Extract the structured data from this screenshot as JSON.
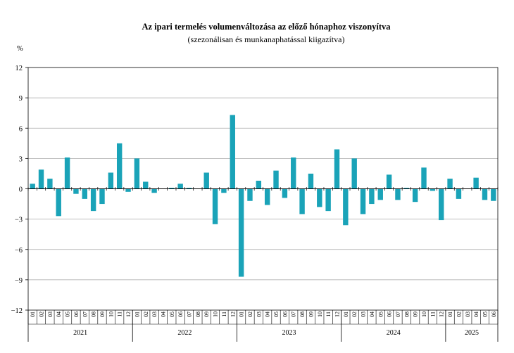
{
  "chart_data": {
    "type": "bar",
    "title": "Az ipari  termelés volumenváltozása az előző hónaphoz viszonyítva",
    "subtitle": "(szezonálisan és munkanaphatással kiigazítva)",
    "ylabel": "%",
    "ylim": [
      -12,
      12
    ],
    "yticks": [
      12,
      9,
      6,
      3,
      0,
      -3,
      -6,
      -9,
      -12
    ],
    "grid": true,
    "bar_color": "#1aa3b8",
    "years": [
      {
        "label": "2021",
        "months": 12
      },
      {
        "label": "2022",
        "months": 12
      },
      {
        "label": "2023",
        "months": 12
      },
      {
        "label": "2024",
        "months": 12
      },
      {
        "label": "2025",
        "months": 6
      }
    ],
    "categories": [
      "01",
      "02",
      "03",
      "04",
      "05",
      "06",
      "07",
      "08",
      "09",
      "10",
      "11",
      "12",
      "01",
      "02",
      "03",
      "04",
      "05",
      "06",
      "07",
      "08",
      "09",
      "10",
      "11",
      "12",
      "01",
      "02",
      "03",
      "04",
      "05",
      "06",
      "07",
      "08",
      "09",
      "10",
      "11",
      "12",
      "01",
      "02",
      "03",
      "04",
      "05",
      "06",
      "07",
      "08",
      "09",
      "10",
      "11",
      "12",
      "01",
      "02",
      "03",
      "04",
      "05",
      "06"
    ],
    "values": [
      0.5,
      1.9,
      1.0,
      -2.7,
      3.1,
      -0.5,
      -1.0,
      -2.2,
      -1.5,
      1.6,
      4.5,
      -0.3,
      3.0,
      0.7,
      -0.4,
      0.0,
      0.1,
      0.5,
      0.1,
      0.0,
      1.6,
      -3.5,
      -0.4,
      7.3,
      -8.7,
      -1.2,
      0.8,
      -1.6,
      1.8,
      -0.9,
      3.1,
      -2.5,
      1.5,
      -1.8,
      -2.2,
      3.9,
      -3.6,
      3.0,
      -2.5,
      -1.5,
      -1.1,
      1.4,
      -1.1,
      0.1,
      -1.3,
      2.1,
      -0.2,
      -3.1,
      1.0,
      -1.0,
      0.0,
      1.1,
      -1.1,
      -1.2
    ]
  }
}
